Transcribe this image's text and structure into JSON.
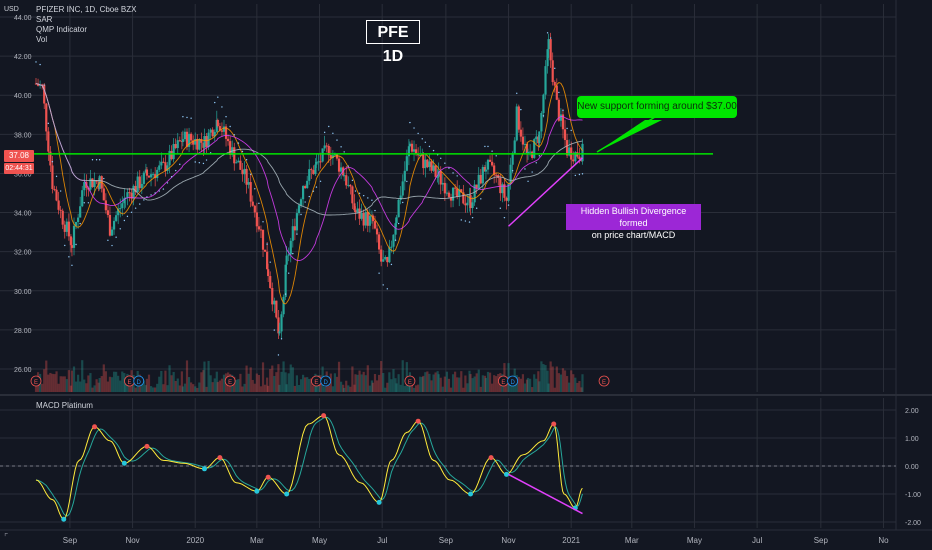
{
  "legend": {
    "symbol_line": "PFIZER INC, 1D, Cboe BZX",
    "indicators": [
      "SAR",
      "QMP Indicator",
      "Vol"
    ]
  },
  "chart_title": "PFE 1D",
  "currency": "USD",
  "price_tag": "37.08",
  "timer_tag": "02:44:31",
  "corner_icon": "tradingview-logo-icon",
  "macd_label": "MACD Platinum",
  "annotations": {
    "support": "New support forming around $37.00",
    "divergence_line1": "Hidden Bullish Divergence formed",
    "divergence_line2": "on price chart/MACD"
  },
  "colors": {
    "background": "#131722",
    "up": "#26a69a",
    "down": "#ef5350",
    "support_line": "#00e600",
    "divergence": "#e040fb",
    "macd_fast": "#ffeb3b",
    "macd_slow": "#26a69a"
  },
  "chart_data": [
    {
      "type": "candlestick",
      "title": "PFE 1D",
      "ylim": [
        25,
        44
      ],
      "y_ticks": [
        "26.00",
        "28.00",
        "30.00",
        "32.00",
        "34.00",
        "36.00",
        "38.00",
        "40.00",
        "42.00",
        "44.00"
      ],
      "x_ticks": [
        "Sep",
        "Nov",
        "2020",
        "Mar",
        "May",
        "Jul",
        "Sep",
        "Nov",
        "2021",
        "Mar",
        "May",
        "Jul",
        "Sep",
        "No"
      ],
      "x_range": [
        "2019-07-30",
        "2021-11-20"
      ],
      "support_level": 37.0,
      "earnings_markers": [
        "2019-07-30",
        "2019-10-29",
        "2020-02-04",
        "2020-04-28",
        "2020-07-28",
        "2020-10-27",
        "2021-02-02"
      ],
      "dividend_markers": [
        "2019-11-07",
        "2020-05-07",
        "2020-11-05"
      ],
      "close_series": [
        {
          "date": "2019-07-30",
          "value": 40.6
        },
        {
          "date": "2019-08-05",
          "value": 40.4
        },
        {
          "date": "2019-08-15",
          "value": 35.5
        },
        {
          "date": "2019-08-23",
          "value": 34.0
        },
        {
          "date": "2019-09-03",
          "value": 32.4
        },
        {
          "date": "2019-09-15",
          "value": 35.6
        },
        {
          "date": "2019-09-30",
          "value": 35.6
        },
        {
          "date": "2019-10-10",
          "value": 33.2
        },
        {
          "date": "2019-10-25",
          "value": 34.8
        },
        {
          "date": "2019-11-15",
          "value": 35.9
        },
        {
          "date": "2019-12-01",
          "value": 36.3
        },
        {
          "date": "2019-12-20",
          "value": 37.8
        },
        {
          "date": "2020-01-10",
          "value": 37.6
        },
        {
          "date": "2020-01-23",
          "value": 38.8
        },
        {
          "date": "2020-02-04",
          "value": 37.3
        },
        {
          "date": "2020-02-20",
          "value": 35.6
        },
        {
          "date": "2020-03-05",
          "value": 33.0
        },
        {
          "date": "2020-03-12",
          "value": 31.0
        },
        {
          "date": "2020-03-23",
          "value": 27.5
        },
        {
          "date": "2020-03-30",
          "value": 31.5
        },
        {
          "date": "2020-04-15",
          "value": 35.5
        },
        {
          "date": "2020-04-28",
          "value": 36.4
        },
        {
          "date": "2020-05-10",
          "value": 37.3
        },
        {
          "date": "2020-05-25",
          "value": 36.0
        },
        {
          "date": "2020-06-05",
          "value": 34.0
        },
        {
          "date": "2020-06-22",
          "value": 33.5
        },
        {
          "date": "2020-06-30",
          "value": 31.5
        },
        {
          "date": "2020-07-06",
          "value": 31.2
        },
        {
          "date": "2020-07-15",
          "value": 34.0
        },
        {
          "date": "2020-07-28",
          "value": 37.5
        },
        {
          "date": "2020-08-10",
          "value": 36.6
        },
        {
          "date": "2020-08-25",
          "value": 35.8
        },
        {
          "date": "2020-09-10",
          "value": 34.8
        },
        {
          "date": "2020-09-25",
          "value": 34.6
        },
        {
          "date": "2020-10-10",
          "value": 36.4
        },
        {
          "date": "2020-10-20",
          "value": 35.8
        },
        {
          "date": "2020-10-30",
          "value": 34.6
        },
        {
          "date": "2020-11-09",
          "value": 39.0
        },
        {
          "date": "2020-11-20",
          "value": 36.7
        },
        {
          "date": "2020-12-01",
          "value": 38.0
        },
        {
          "date": "2020-12-10",
          "value": 42.6
        },
        {
          "date": "2020-12-18",
          "value": 39.5
        },
        {
          "date": "2020-12-28",
          "value": 37.2
        },
        {
          "date": "2021-01-05",
          "value": 37.0
        },
        {
          "date": "2021-01-12",
          "value": 37.08
        }
      ]
    },
    {
      "type": "line",
      "title": "MACD Platinum",
      "ylim": [
        -2.5,
        2.5
      ],
      "y_ticks": [
        "2.00",
        "1.00",
        "0.00",
        "-1.00",
        "-2.00"
      ],
      "series": [
        {
          "values": [
            {
              "date": "2019-07-30",
              "value": -0.5
            },
            {
              "date": "2019-08-15",
              "value": -1.2
            },
            {
              "date": "2019-08-26",
              "value": -1.9
            },
            {
              "date": "2019-09-10",
              "value": 0.2
            },
            {
              "date": "2019-09-25",
              "value": 1.4
            },
            {
              "date": "2019-10-10",
              "value": 0.9
            },
            {
              "date": "2019-10-24",
              "value": 0.1
            },
            {
              "date": "2019-11-15",
              "value": 0.7
            },
            {
              "date": "2019-12-01",
              "value": 0.2
            },
            {
              "date": "2019-12-20",
              "value": 0.1
            },
            {
              "date": "2020-01-10",
              "value": -0.1
            },
            {
              "date": "2020-01-25",
              "value": 0.3
            },
            {
              "date": "2020-02-10",
              "value": -0.6
            },
            {
              "date": "2020-03-01",
              "value": -0.9
            },
            {
              "date": "2020-03-12",
              "value": -0.4
            },
            {
              "date": "2020-03-30",
              "value": -1.0
            },
            {
              "date": "2020-04-20",
              "value": 1.5
            },
            {
              "date": "2020-05-05",
              "value": 1.8
            },
            {
              "date": "2020-05-20",
              "value": 0.4
            },
            {
              "date": "2020-06-10",
              "value": -0.6
            },
            {
              "date": "2020-06-28",
              "value": -1.3
            },
            {
              "date": "2020-07-10",
              "value": 0.2
            },
            {
              "date": "2020-07-25",
              "value": 1.2
            },
            {
              "date": "2020-08-05",
              "value": 1.6
            },
            {
              "date": "2020-08-20",
              "value": 0.2
            },
            {
              "date": "2020-09-05",
              "value": -0.5
            },
            {
              "date": "2020-09-25",
              "value": -1.0
            },
            {
              "date": "2020-10-15",
              "value": 0.3
            },
            {
              "date": "2020-10-30",
              "value": -0.3
            },
            {
              "date": "2020-11-15",
              "value": 0.4
            },
            {
              "date": "2020-12-05",
              "value": 0.9
            },
            {
              "date": "2020-12-15",
              "value": 1.5
            },
            {
              "date": "2020-12-25",
              "value": -1.0
            },
            {
              "date": "2021-01-05",
              "value": -1.5
            },
            {
              "date": "2021-01-12",
              "value": -0.8
            }
          ]
        }
      ],
      "divergence_line": [
        {
          "date": "2020-11-01",
          "value": -0.3
        },
        {
          "date": "2021-01-12",
          "value": -1.7
        }
      ]
    }
  ]
}
